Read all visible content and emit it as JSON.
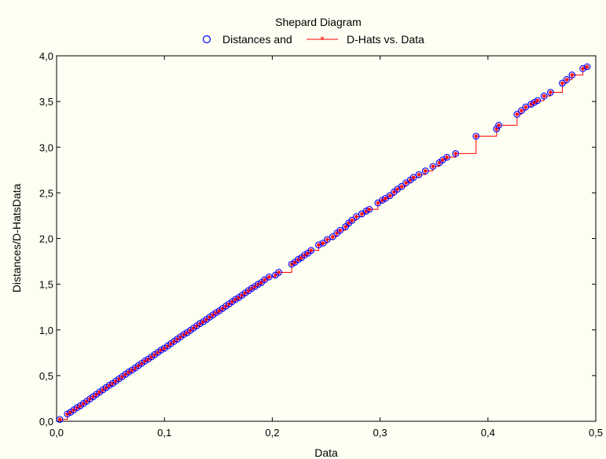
{
  "chart_data": {
    "type": "scatter",
    "title": "Shepard Diagram",
    "xlabel": "Data",
    "ylabel": "Distances/D-HatsData",
    "xlim": [
      0,
      0.5
    ],
    "ylim": [
      0,
      4.0
    ],
    "x_ticks": [
      "0,0",
      "0,1",
      "0,2",
      "0,3",
      "0,4",
      "0,5"
    ],
    "y_ticks": [
      "0,0",
      "0,5",
      "1,0",
      "1,5",
      "2,0",
      "2,5",
      "3,0",
      "3,5",
      "4,0"
    ],
    "grid": false,
    "legend_position": "top-center",
    "colors": {
      "distances": "#0000ff",
      "dhats": "#ff0000",
      "background": "#fefef2"
    },
    "series": [
      {
        "name": "Distances and",
        "style": "circles",
        "x": [
          0.003,
          0.01,
          0.013,
          0.016,
          0.019,
          0.022,
          0.025,
          0.028,
          0.031,
          0.034,
          0.037,
          0.04,
          0.043,
          0.046,
          0.049,
          0.052,
          0.055,
          0.058,
          0.061,
          0.064,
          0.067,
          0.07,
          0.073,
          0.076,
          0.079,
          0.082,
          0.085,
          0.088,
          0.091,
          0.094,
          0.097,
          0.1,
          0.103,
          0.106,
          0.109,
          0.112,
          0.115,
          0.118,
          0.121,
          0.124,
          0.127,
          0.13,
          0.133,
          0.136,
          0.139,
          0.142,
          0.145,
          0.148,
          0.151,
          0.154,
          0.157,
          0.16,
          0.163,
          0.166,
          0.169,
          0.172,
          0.175,
          0.178,
          0.181,
          0.184,
          0.187,
          0.19,
          0.193,
          0.197,
          0.203,
          0.206,
          0.218,
          0.221,
          0.224,
          0.227,
          0.23,
          0.233,
          0.236,
          0.243,
          0.247,
          0.251,
          0.256,
          0.26,
          0.263,
          0.268,
          0.271,
          0.274,
          0.278,
          0.283,
          0.287,
          0.29,
          0.298,
          0.302,
          0.305,
          0.309,
          0.313,
          0.316,
          0.32,
          0.324,
          0.328,
          0.331,
          0.336,
          0.342,
          0.349,
          0.355,
          0.358,
          0.362,
          0.37,
          0.389,
          0.408,
          0.41,
          0.427,
          0.431,
          0.435,
          0.44,
          0.443,
          0.446,
          0.452,
          0.458,
          0.469,
          0.473,
          0.478,
          0.488,
          0.492
        ],
        "y": [
          0.02,
          0.08,
          0.1,
          0.125,
          0.15,
          0.17,
          0.195,
          0.22,
          0.245,
          0.27,
          0.295,
          0.32,
          0.345,
          0.37,
          0.395,
          0.415,
          0.44,
          0.465,
          0.49,
          0.515,
          0.54,
          0.56,
          0.585,
          0.61,
          0.635,
          0.66,
          0.68,
          0.705,
          0.73,
          0.755,
          0.78,
          0.8,
          0.825,
          0.85,
          0.875,
          0.9,
          0.925,
          0.95,
          0.97,
          0.995,
          1.02,
          1.045,
          1.07,
          1.09,
          1.115,
          1.14,
          1.165,
          1.19,
          1.21,
          1.235,
          1.26,
          1.285,
          1.31,
          1.335,
          1.355,
          1.38,
          1.405,
          1.43,
          1.455,
          1.475,
          1.5,
          1.52,
          1.55,
          1.58,
          1.6,
          1.63,
          1.72,
          1.74,
          1.77,
          1.79,
          1.82,
          1.84,
          1.87,
          1.93,
          1.95,
          1.99,
          2.02,
          2.06,
          2.09,
          2.13,
          2.17,
          2.2,
          2.24,
          2.27,
          2.3,
          2.32,
          2.39,
          2.42,
          2.44,
          2.47,
          2.51,
          2.54,
          2.57,
          2.61,
          2.64,
          2.67,
          2.7,
          2.74,
          2.79,
          2.83,
          2.86,
          2.89,
          2.93,
          3.12,
          3.2,
          3.24,
          3.36,
          3.4,
          3.44,
          3.47,
          3.49,
          3.51,
          3.56,
          3.6,
          3.7,
          3.74,
          3.79,
          3.86,
          3.88
        ]
      },
      {
        "name": "D-Hats vs. Data",
        "style": "step-line-with-stars"
      }
    ]
  }
}
